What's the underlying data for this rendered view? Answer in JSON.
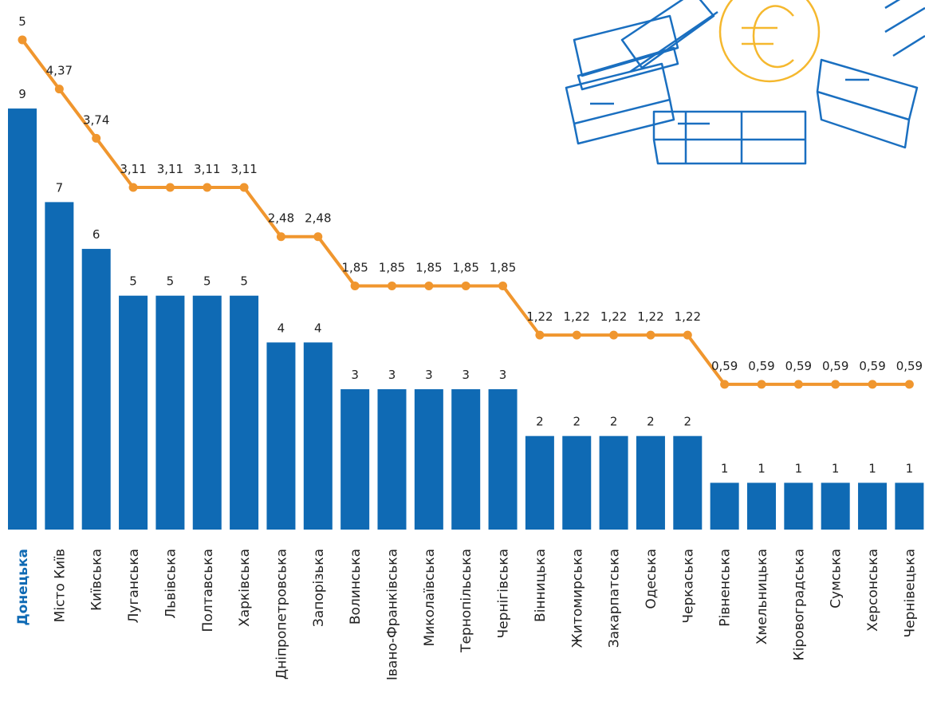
{
  "chart_data": {
    "type": "bar-line",
    "categories": [
      "Донецька",
      "Місто Київ",
      "Київська",
      "Луганська",
      "Львівська",
      "Полтавська",
      "Харківська",
      "Дніпропетровська",
      "Запорізька",
      "Волинська",
      "Івано-Франківська",
      "Миколаївська",
      "Тернопільська",
      "Чернігівська",
      "Вінницька",
      "Житомирська",
      "Закарпатська",
      "Одеська",
      "Черкаська",
      "Рівненська",
      "Хмельницька",
      "Кіровоградська",
      "Сумська",
      "Херсонська",
      "Чернівецька"
    ],
    "highlight_category_index": 0,
    "highlight_color": "#0f6ab4",
    "series": [
      {
        "type": "bar",
        "color": "#0f6ab4",
        "values": [
          9,
          7,
          6,
          5,
          5,
          5,
          5,
          4,
          4,
          3,
          3,
          3,
          3,
          3,
          2,
          2,
          2,
          2,
          2,
          1,
          1,
          1,
          1,
          1,
          1
        ]
      },
      {
        "type": "line",
        "axis": "y2",
        "color": "#f0962e",
        "values": [
          5,
          4.37,
          3.74,
          3.11,
          3.11,
          3.11,
          3.11,
          2.48,
          2.48,
          1.85,
          1.85,
          1.85,
          1.85,
          1.85,
          1.22,
          1.22,
          1.22,
          1.22,
          1.22,
          0.59,
          0.59,
          0.59,
          0.59,
          0.59,
          0.59
        ],
        "value_labels": [
          "5",
          "4,37",
          "3,74",
          "3,11",
          "3,11",
          "3,11",
          "3,11",
          "2,48",
          "2,48",
          "1,85",
          "1,85",
          "1,85",
          "1,85",
          "1,85",
          "1,22",
          "1,22",
          "1,22",
          "1,22",
          "1,22",
          "0,59",
          "0,59",
          "0,59",
          "0,59",
          "0,59",
          "0,59"
        ]
      }
    ],
    "ylim": [
      0,
      11.32
    ],
    "y2lim": [
      -1.27,
      5.51
    ]
  }
}
